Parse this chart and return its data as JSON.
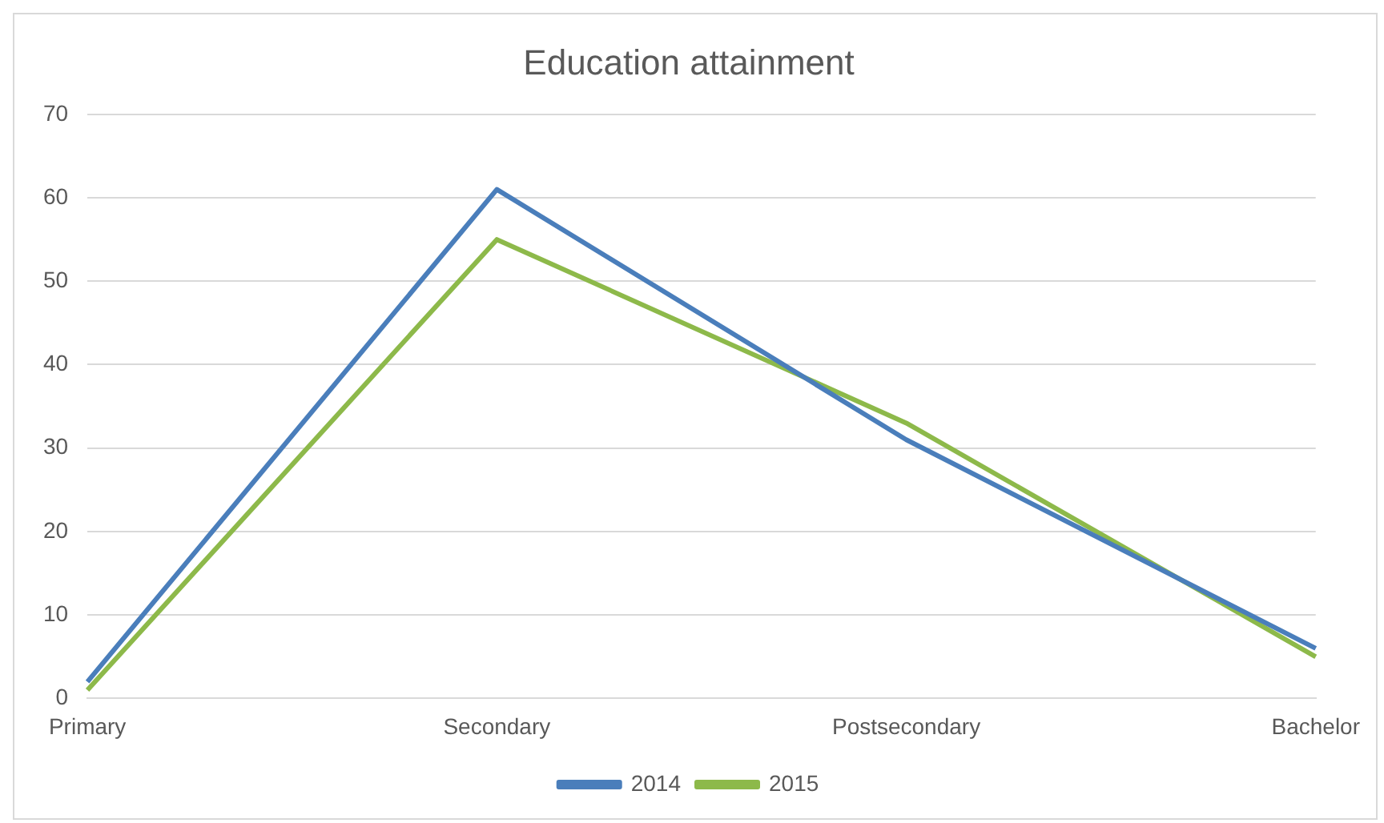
{
  "chart_data": {
    "type": "line",
    "title": "Education attainment",
    "categories": [
      "Primary",
      "Secondary",
      "Postsecondary",
      "Bachelor"
    ],
    "series": [
      {
        "name": "2014",
        "color": "#4a7ebb",
        "values": [
          2,
          61,
          31,
          6
        ]
      },
      {
        "name": "2015",
        "color": "#8db94a",
        "values": [
          1,
          55,
          33,
          5
        ]
      }
    ],
    "ylim": [
      0,
      70
    ],
    "yticks": [
      0,
      10,
      20,
      30,
      40,
      50,
      60,
      70
    ],
    "grid": "y",
    "legend": "bottom",
    "marker": "none"
  }
}
